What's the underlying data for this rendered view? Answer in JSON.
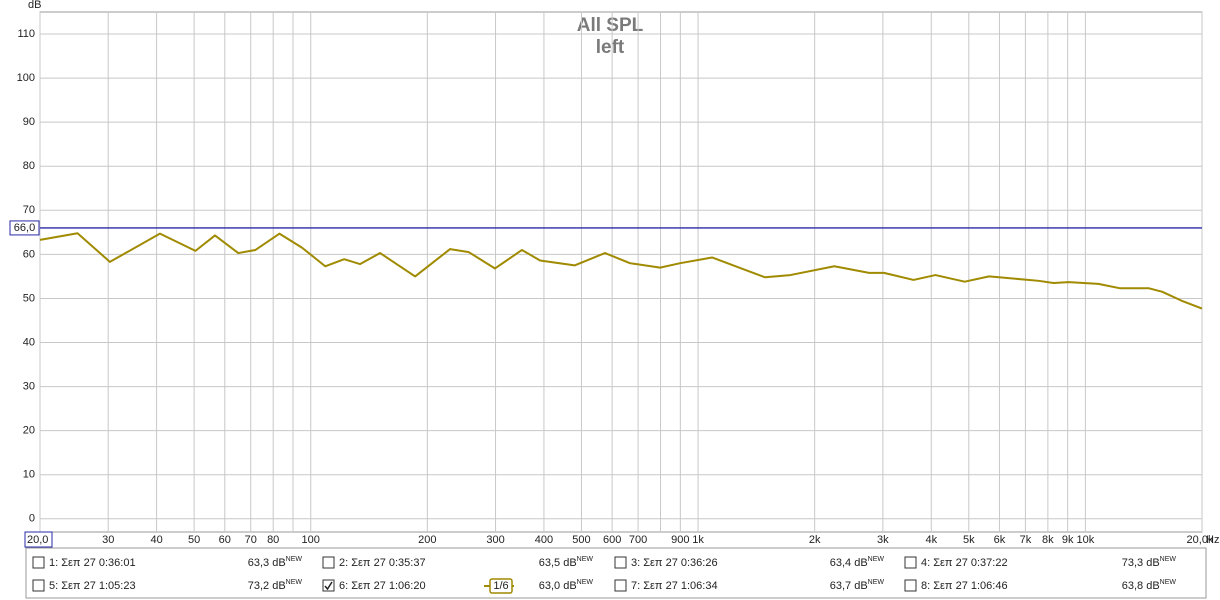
{
  "chart_data": {
    "type": "line",
    "title": "All SPL",
    "subtitle": "left",
    "y_unit": "dB",
    "x_unit": "Hz",
    "log_x": true,
    "grid": true,
    "color": "#a08a00",
    "xlim": [
      20,
      20000
    ],
    "ylim": [
      -3,
      115
    ],
    "yticks": [
      0,
      10,
      20,
      30,
      40,
      50,
      60,
      70,
      80,
      90,
      100,
      110
    ],
    "xticks": [
      {
        "value": 20,
        "label": "20,0"
      },
      30,
      40,
      50,
      60,
      70,
      80,
      100,
      200,
      300,
      400,
      500,
      600,
      700,
      900,
      {
        "value": 1000,
        "label": "1k"
      },
      {
        "value": 2000,
        "label": "2k"
      },
      {
        "value": 3000,
        "label": "3k"
      },
      {
        "value": 4000,
        "label": "4k"
      },
      {
        "value": 5000,
        "label": "5k"
      },
      {
        "value": 6000,
        "label": "6k"
      },
      {
        "value": 7000,
        "label": "7k"
      },
      {
        "value": 8000,
        "label": "8k"
      },
      {
        "value": 9000,
        "label": "9k"
      },
      {
        "value": 10000,
        "label": "10k"
      },
      {
        "value": 20000,
        "label": "20,0k"
      }
    ],
    "xminor": [
      90,
      800
    ],
    "target": {
      "value": 66,
      "label": "66,0",
      "color": "#2a2aa8"
    },
    "x": [
      20,
      25,
      30.3,
      40.8,
      50.4,
      56.6,
      65,
      72,
      83,
      95,
      109,
      122,
      134,
      151,
      186,
      229,
      256,
      299,
      351,
      391,
      480,
      575,
      667,
      798,
      899,
      1087,
      1489,
      1730,
      2248,
      2763,
      3020,
      3600,
      4100,
      4880,
      5640,
      6340,
      7570,
      8270,
      9060,
      10800,
      12300,
      14600,
      15800,
      17700,
      20000
    ],
    "y": [
      63.3,
      64.8,
      58.3,
      64.7,
      60.8,
      64.3,
      60.3,
      61,
      64.7,
      61.5,
      57.3,
      58.9,
      57.8,
      60.3,
      55,
      61.2,
      60.5,
      56.8,
      61,
      58.6,
      57.5,
      60.3,
      58,
      57,
      58,
      59.3,
      54.8,
      55.3,
      57.3,
      55.8,
      55.8,
      54.2,
      55.3,
      53.8,
      55,
      54.6,
      54,
      53.5,
      53.7,
      53.3,
      52.3,
      52.3,
      51.5,
      49.5,
      47.7
    ]
  },
  "legend": {
    "smoothing": "1/6",
    "items": [
      {
        "label": "1: Σεπ 27 0:36:01",
        "level": "63,3 dB",
        "tag": "NEW",
        "color": "#5e4e00",
        "checked": false
      },
      {
        "label": "2: Σεπ 27 0:35:37",
        "level": "63,5 dB",
        "tag": "NEW",
        "color": "#2b2b2b",
        "checked": false
      },
      {
        "label": "3: Σεπ 27 0:36:26",
        "level": "63,4 dB",
        "tag": "NEW",
        "color": "#1e1e1e",
        "checked": false
      },
      {
        "label": "4: Σεπ 27 0:37:22",
        "level": "73,3 dB",
        "tag": "NEW",
        "color": "#6b1f5b",
        "checked": false
      },
      {
        "label": "5: Σεπ 27 1:05:23",
        "level": "73,2 dB",
        "tag": "NEW",
        "color": "#005f6b",
        "checked": false
      },
      {
        "label": "6: Σεπ 27 1:06:20",
        "level": "63,0 dB",
        "tag": "NEW",
        "color": "#8a7600",
        "checked": true
      },
      {
        "label": "7: Σεπ 27 1:06:34",
        "level": "63,7 dB",
        "tag": "NEW",
        "color": "#008a55",
        "checked": false
      },
      {
        "label": "8: Σεπ 27 1:06:46",
        "level": "63,8 dB",
        "tag": "NEW",
        "color": "#553380",
        "checked": false
      }
    ]
  }
}
